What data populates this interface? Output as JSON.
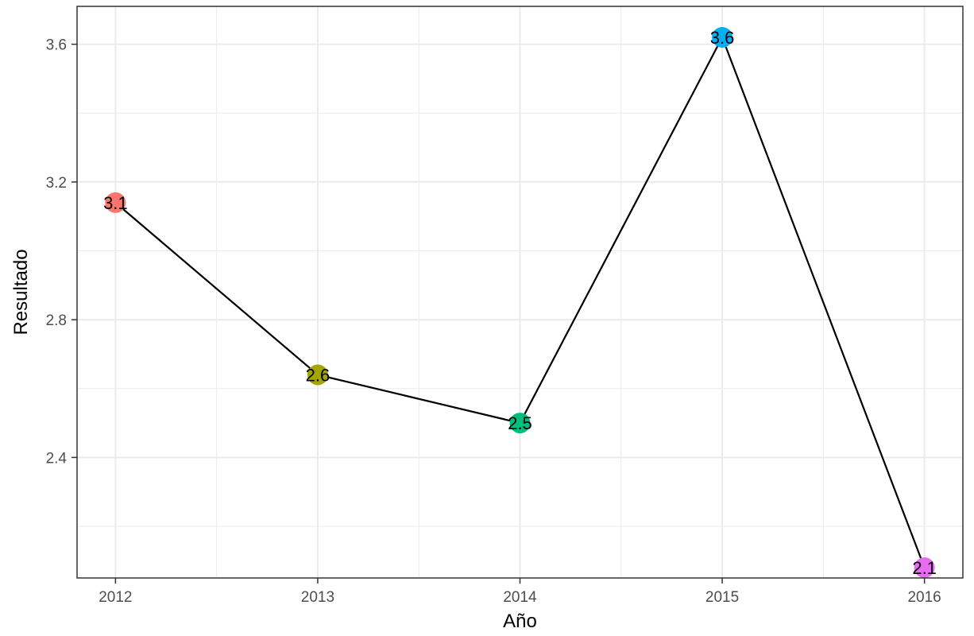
{
  "chart_data": {
    "type": "line",
    "title": "",
    "xlabel": "Año",
    "ylabel": "Resultado",
    "x": [
      2012,
      2013,
      2014,
      2015,
      2016
    ],
    "values": [
      3.14,
      2.64,
      2.5,
      3.62,
      2.08
    ],
    "labels": [
      "3.1",
      "2.6",
      "2.5",
      "3.6",
      "2.1"
    ],
    "point_colors": [
      "#F8766D",
      "#A3A500",
      "#00BF7D",
      "#00B0F6",
      "#E76BF3"
    ],
    "line_color": "#000000",
    "xlim": [
      2011.81,
      2016.19
    ],
    "ylim": [
      2.05,
      3.71
    ],
    "x_ticks": [
      2012,
      2013,
      2014,
      2015,
      2016
    ],
    "x_tick_labels": [
      "2012",
      "2013",
      "2014",
      "2015",
      "2016"
    ],
    "y_ticks": [
      2.4,
      2.8,
      3.2,
      3.6
    ],
    "y_tick_labels": [
      "2.4",
      "2.8",
      "3.2",
      "3.6"
    ],
    "grid": true,
    "legend": "none"
  }
}
